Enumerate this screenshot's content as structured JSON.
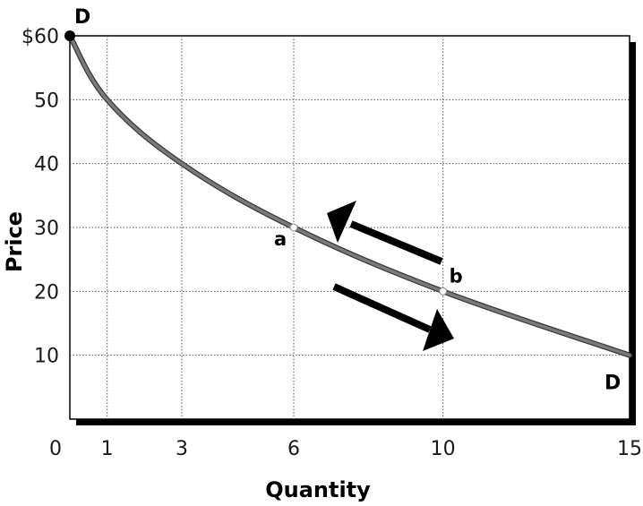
{
  "chart_data": {
    "type": "line",
    "xlabel": "Quantity",
    "ylabel": "Price",
    "xlim": [
      0,
      15
    ],
    "ylim": [
      0,
      60
    ],
    "x_ticks": [
      "0",
      "1",
      "3",
      "6",
      "10",
      "15"
    ],
    "y_ticks": [
      "$60",
      "50",
      "40",
      "30",
      "20",
      "10"
    ],
    "grid": true,
    "series": [
      {
        "name": "D",
        "x": [
          0,
          1,
          3,
          6,
          10,
          15
        ],
        "y": [
          60,
          50,
          40,
          30,
          20,
          10
        ]
      }
    ],
    "annotations": [
      {
        "label": "a",
        "x": 6,
        "y": 30
      },
      {
        "label": "b",
        "x": 10,
        "y": 20
      }
    ],
    "colors": {
      "curve": "#7a7a7a",
      "grid": "#555555",
      "axis": "#000000"
    }
  }
}
